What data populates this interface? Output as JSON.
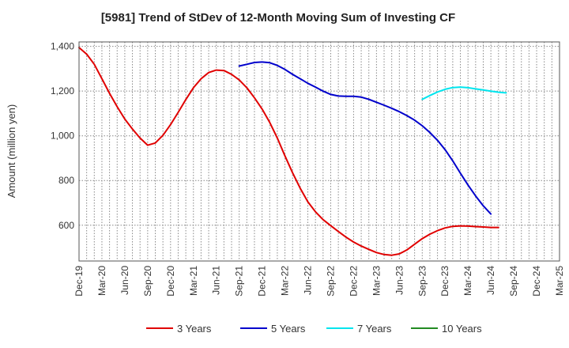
{
  "chart_data": {
    "type": "line",
    "title": "[5981]  Trend of StDev of 12-Month Moving Sum of Investing CF",
    "xlabel": "",
    "ylabel": "Amount (million yen)",
    "ylim": [
      440,
      1420
    ],
    "yticks": [
      600,
      800,
      1000,
      1200,
      1400
    ],
    "ytick_labels": [
      "600",
      "800",
      "1,000",
      "1,200",
      "1,400"
    ],
    "x_tick_labels": [
      "Dec-19",
      "Mar-20",
      "Jun-20",
      "Sep-20",
      "Dec-20",
      "Mar-21",
      "Jun-21",
      "Sep-21",
      "Dec-21",
      "Mar-22",
      "Jun-22",
      "Sep-22",
      "Dec-22",
      "Mar-23",
      "Jun-23",
      "Sep-23",
      "Dec-23",
      "Mar-24",
      "Jun-24",
      "Sep-24",
      "Dec-24",
      "Mar-25"
    ],
    "x_months": [
      "2019-12",
      "2020-01",
      "2020-02",
      "2020-03",
      "2020-04",
      "2020-05",
      "2020-06",
      "2020-07",
      "2020-08",
      "2020-09",
      "2020-10",
      "2020-11",
      "2020-12",
      "2021-01",
      "2021-02",
      "2021-03",
      "2021-04",
      "2021-05",
      "2021-06",
      "2021-07",
      "2021-08",
      "2021-09",
      "2021-10",
      "2021-11",
      "2021-12",
      "2022-01",
      "2022-02",
      "2022-03",
      "2022-04",
      "2022-05",
      "2022-06",
      "2022-07",
      "2022-08",
      "2022-09",
      "2022-10",
      "2022-11",
      "2022-12",
      "2023-01",
      "2023-02",
      "2023-03",
      "2023-04",
      "2023-05",
      "2023-06",
      "2023-07",
      "2023-08",
      "2023-09",
      "2023-10",
      "2023-11",
      "2023-12",
      "2024-01",
      "2024-02",
      "2024-03",
      "2024-04",
      "2024-05",
      "2024-06",
      "2024-07",
      "2024-08",
      "2024-09",
      "2024-10",
      "2024-11",
      "2024-12",
      "2025-01",
      "2025-02",
      "2025-03"
    ],
    "grid": true,
    "legend_position": "bottom",
    "series": [
      {
        "name": "3 Years",
        "color": "#e00000",
        "start": "2019-12",
        "values": [
          1395,
          1365,
          1320,
          1255,
          1190,
          1130,
          1075,
          1030,
          990,
          958,
          968,
          1002,
          1050,
          1105,
          1162,
          1215,
          1255,
          1283,
          1294,
          1292,
          1275,
          1250,
          1215,
          1170,
          1120,
          1060,
          990,
          910,
          835,
          765,
          705,
          660,
          625,
          598,
          572,
          547,
          525,
          507,
          492,
          478,
          469,
          466,
          472,
          490,
          515,
          540,
          560,
          576,
          588,
          595,
          597,
          596,
          594,
          592,
          590,
          590
        ]
      },
      {
        "name": "5 Years",
        "color": "#0000cc",
        "start": "2021-09",
        "values": [
          1312,
          1320,
          1328,
          1330,
          1327,
          1315,
          1297,
          1275,
          1255,
          1235,
          1218,
          1200,
          1185,
          1178,
          1177,
          1177,
          1173,
          1163,
          1150,
          1137,
          1123,
          1108,
          1090,
          1070,
          1045,
          1015,
          980,
          938,
          888,
          833,
          780,
          731,
          687,
          650
        ]
      },
      {
        "name": "7 Years",
        "color": "#00e5ee",
        "start": "2023-09",
        "values": [
          1163,
          1180,
          1196,
          1208,
          1216,
          1218,
          1215,
          1210,
          1205,
          1200,
          1195,
          1192
        ]
      },
      {
        "name": "10 Years",
        "color": "#228b22",
        "start": "2019-12",
        "values": []
      }
    ]
  }
}
